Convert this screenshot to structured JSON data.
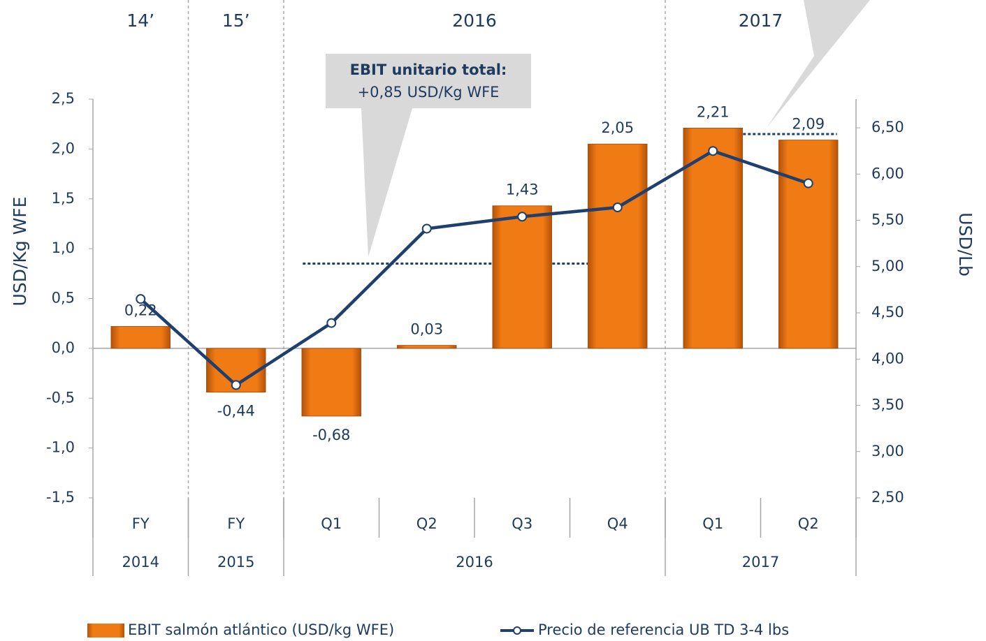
{
  "chart_data": {
    "type": "bar",
    "categories": [
      "FY",
      "FY",
      "Q1",
      "Q2",
      "Q3",
      "Q4",
      "Q1",
      "Q2"
    ],
    "groups": [
      {
        "label": "2014",
        "header": "14’",
        "count": 1
      },
      {
        "label": "2015",
        "header": "15’",
        "count": 1
      },
      {
        "label": "2016",
        "header": "2016",
        "count": 4
      },
      {
        "label": "2017",
        "header": "2017",
        "count": 2
      }
    ],
    "series": [
      {
        "name": "EBIT salmón atlántico (USD/kg WFE)",
        "type": "bar",
        "color": "#e8720c",
        "values": [
          0.22,
          -0.44,
          -0.68,
          0.03,
          1.43,
          2.05,
          2.21,
          2.09
        ],
        "value_labels": [
          "0,22",
          "-0,44",
          "-0,68",
          "0,03",
          "1,43",
          "2,05",
          "2,21",
          "2,09"
        ]
      },
      {
        "name": "Precio de referencia UB TD 3-4 lbs",
        "type": "line",
        "axis": "y2",
        "color": "#1f3f6e",
        "values": [
          4.65,
          3.72,
          4.39,
          5.41,
          5.54,
          5.64,
          6.25,
          5.9
        ]
      }
    ],
    "reference_lines": [
      {
        "value": 0.85,
        "start": 2,
        "end": 5
      },
      {
        "value": 2.15,
        "start": 6,
        "end": 7
      }
    ],
    "annotation": {
      "title": "EBIT unitario total:",
      "text": "+0,85 USD/Kg WFE"
    },
    "ylabel": "USD/Kg WFE",
    "y2label": "USD/Lb",
    "ylim": [
      -1.5,
      2.5
    ],
    "yticks": [
      {
        "value": -1.5,
        "label": "-1,5"
      },
      {
        "value": -1,
        "label": "-1,0"
      },
      {
        "value": -0.5,
        "label": "-0,5"
      },
      {
        "value": 0,
        "label": "0,0"
      },
      {
        "value": 0.5,
        "label": "0,5"
      },
      {
        "value": 1,
        "label": "1,0"
      },
      {
        "value": 1.5,
        "label": "1,5"
      },
      {
        "value": 2,
        "label": "2,0"
      },
      {
        "value": 2.5,
        "label": "2,5"
      }
    ],
    "y2lim": [
      2.5,
      6.81
    ],
    "y2ticks": [
      {
        "value": 2.5,
        "label": "2,50"
      },
      {
        "value": 3,
        "label": "3,00"
      },
      {
        "value": 3.5,
        "label": "3,50"
      },
      {
        "value": 4,
        "label": "4,00"
      },
      {
        "value": 4.5,
        "label": "4,50"
      },
      {
        "value": 5,
        "label": "5,00"
      },
      {
        "value": 5.5,
        "label": "5,50"
      },
      {
        "value": 6,
        "label": "6,00"
      },
      {
        "value": 6.5,
        "label": "6,50"
      }
    ],
    "grid": false
  }
}
